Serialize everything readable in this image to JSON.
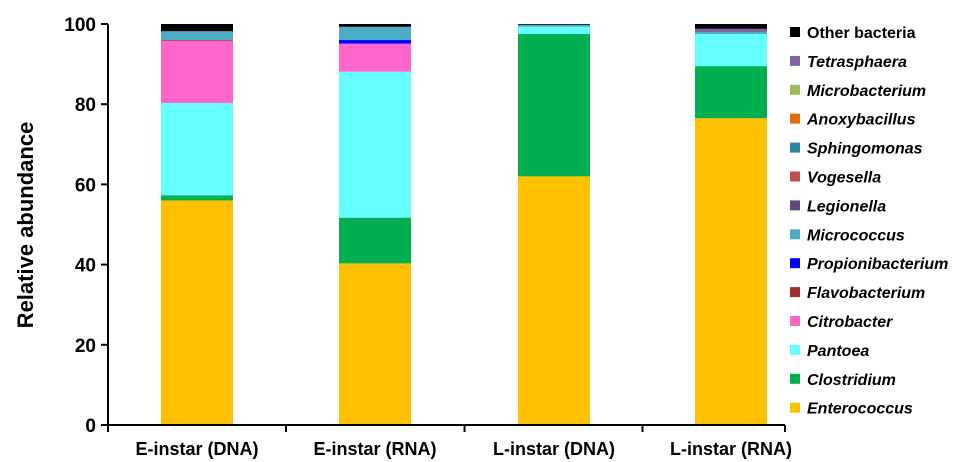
{
  "chart_data": {
    "type": "bar",
    "stacked": true,
    "title": "",
    "xlabel": "",
    "ylabel": "Relative abundance",
    "ylim": [
      0,
      100
    ],
    "yticks": [
      "0",
      "20",
      "40",
      "60",
      "80",
      "100"
    ],
    "categories": [
      "E-instar (DNA)",
      "E-instar (RNA)",
      "L-instar (DNA)",
      "L-instar (RNA)"
    ],
    "legend_position": "right",
    "grid": false,
    "series": [
      {
        "name": "Enterococcus",
        "color": "#FFC000",
        "italic": true,
        "values": [
          56,
          40.3,
          62,
          76.5
        ]
      },
      {
        "name": "Clostridium",
        "color": "#00B050",
        "italic": true,
        "values": [
          1.3,
          11.4,
          35.5,
          13
        ]
      },
      {
        "name": "Pantoea",
        "color": "#66FFFF",
        "italic": true,
        "values": [
          23,
          36.4,
          1.8,
          8
        ]
      },
      {
        "name": "Citrobacter",
        "color": "#FF66CC",
        "italic": true,
        "values": [
          15.5,
          7,
          0,
          0
        ]
      },
      {
        "name": "Flavobacterium",
        "color": "#A0302A",
        "italic": true,
        "values": [
          0.2,
          0,
          0,
          0
        ]
      },
      {
        "name": "Propionibacterium",
        "color": "#0000FF",
        "italic": true,
        "values": [
          0,
          0.9,
          0,
          0
        ]
      },
      {
        "name": "Micrococcus",
        "color": "#4BACC6",
        "italic": true,
        "values": [
          2.2,
          3.3,
          0.5,
          0.5
        ]
      },
      {
        "name": "Legionella",
        "color": "#604A7B",
        "italic": true,
        "values": [
          0,
          0,
          0,
          0
        ]
      },
      {
        "name": "Vogesella",
        "color": "#C0504D",
        "italic": true,
        "values": [
          0,
          0,
          0,
          0
        ]
      },
      {
        "name": "Sphingomonas",
        "color": "#31859C",
        "italic": true,
        "values": [
          0,
          0,
          0,
          0
        ]
      },
      {
        "name": "Anoxybacillus",
        "color": "#E46C0A",
        "italic": true,
        "values": [
          0,
          0,
          0,
          0
        ]
      },
      {
        "name": "Microbacterium",
        "color": "#9BBB59",
        "italic": true,
        "values": [
          0,
          0,
          0,
          0
        ]
      },
      {
        "name": "Tetrasphaera",
        "color": "#8064A2",
        "italic": true,
        "values": [
          0,
          0,
          0,
          0.8
        ]
      },
      {
        "name": "Other bacteria",
        "color": "#000000",
        "italic": false,
        "values": [
          1.8,
          0.7,
          0.2,
          1.2
        ]
      }
    ]
  }
}
